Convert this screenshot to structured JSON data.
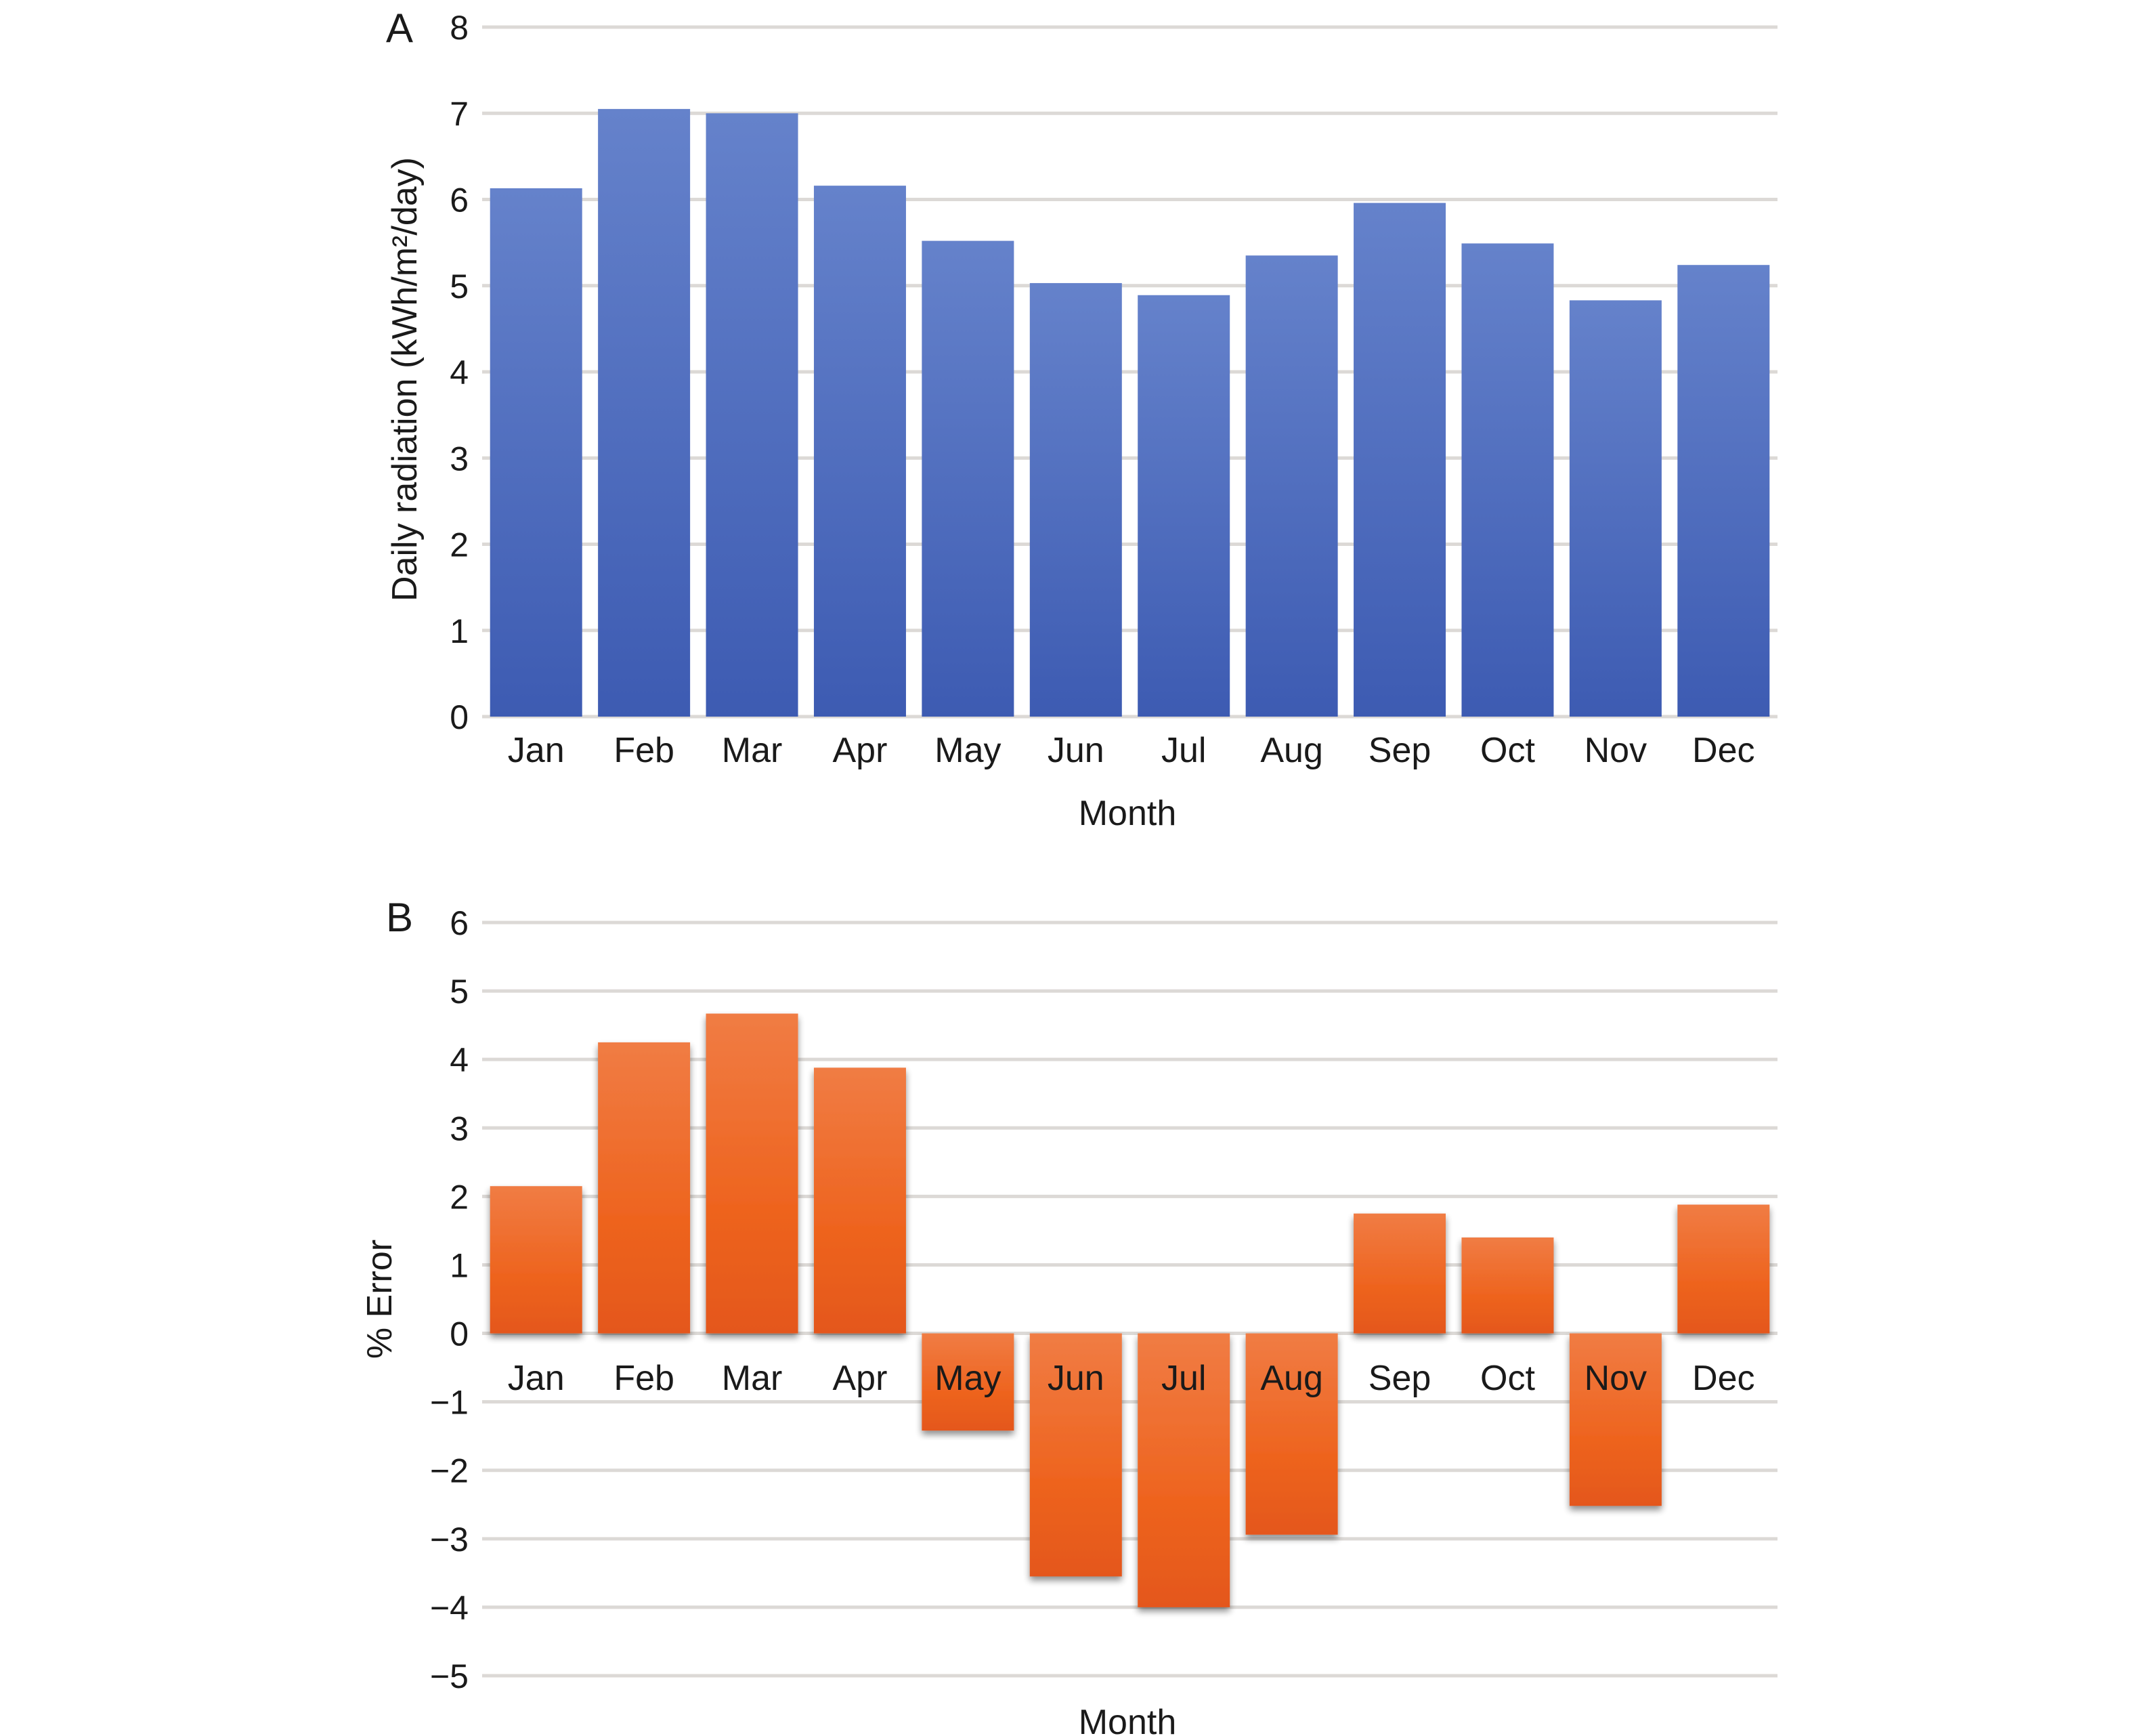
{
  "chart_data": [
    {
      "panel_label": "A",
      "type": "bar",
      "title": "",
      "xlabel": "Month",
      "ylabel": "Daily radiation (kWh/m²/day)",
      "categories": [
        "Jan",
        "Feb",
        "Mar",
        "Apr",
        "May",
        "Jun",
        "Jul",
        "Aug",
        "Sep",
        "Oct",
        "Nov",
        "Dec"
      ],
      "values": [
        6.13,
        7.05,
        7.0,
        6.16,
        5.52,
        5.03,
        4.89,
        5.35,
        5.96,
        5.49,
        4.83,
        5.24
      ],
      "ylim": [
        0,
        8
      ],
      "yticks": [
        0,
        1,
        2,
        3,
        4,
        5,
        6,
        7,
        8
      ],
      "ytick_labels": [
        "0",
        "1",
        "2",
        "3",
        "4",
        "5",
        "6",
        "7",
        "8"
      ],
      "grid": true,
      "bar_color": "#4a67bd",
      "legend": "none"
    },
    {
      "panel_label": "B",
      "type": "bar",
      "title": "",
      "xlabel": "Month",
      "ylabel": "% Error",
      "categories": [
        "Jan",
        "Feb",
        "Mar",
        "Apr",
        "May",
        "Jun",
        "Jul",
        "Aug",
        "Sep",
        "Oct",
        "Nov",
        "Dec"
      ],
      "values": [
        2.15,
        4.25,
        4.67,
        3.88,
        -1.42,
        -3.55,
        -4.0,
        -2.94,
        1.75,
        1.4,
        -2.52,
        1.88
      ],
      "ylim": [
        -5,
        6
      ],
      "yticks": [
        -5,
        -4,
        -3,
        -2,
        -1,
        0,
        1,
        2,
        3,
        4,
        5,
        6
      ],
      "ytick_labels": [
        "−5",
        "−4",
        "−3",
        "−2",
        "−1",
        "0",
        "1",
        "2",
        "3",
        "4",
        "5",
        "6"
      ],
      "grid": true,
      "bar_color": "#ee6423",
      "legend": "none"
    }
  ]
}
